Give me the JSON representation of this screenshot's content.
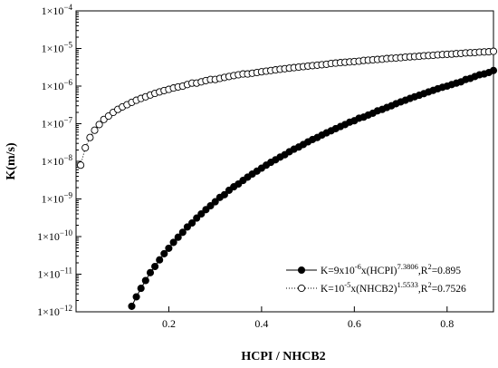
{
  "chart_data": {
    "type": "scatter",
    "xlabel": "HCPI / NHCB2",
    "ylabel": "K(m/s)",
    "xlim": [
      0.0,
      0.9
    ],
    "ylim": [
      1e-12,
      0.0001
    ],
    "y_scale": "log",
    "grid": false,
    "legend_position": "bottom-right",
    "x_ticks": [
      {
        "value": 0.2,
        "label": "0.2"
      },
      {
        "value": 0.4,
        "label": "0.4"
      },
      {
        "value": 0.6,
        "label": "0.6"
      },
      {
        "value": 0.8,
        "label": "0.8"
      }
    ],
    "y_ticks": [
      {
        "value": 1e-12,
        "base": "1×10",
        "exp": "−12"
      },
      {
        "value": 1e-11,
        "base": "1×10",
        "exp": "−11"
      },
      {
        "value": 1e-10,
        "base": "1×10",
        "exp": "−10"
      },
      {
        "value": 1e-09,
        "base": "1×10",
        "exp": "−9"
      },
      {
        "value": 1e-08,
        "base": "1×10",
        "exp": "−8"
      },
      {
        "value": 1e-07,
        "base": "1×10",
        "exp": "−7"
      },
      {
        "value": 1e-06,
        "base": "1×10",
        "exp": "−6"
      },
      {
        "value": 1e-05,
        "base": "1×10",
        "exp": "−5"
      },
      {
        "value": 0.0001,
        "base": "1×10",
        "exp": "−4"
      }
    ],
    "series": [
      {
        "legend_parts": [
          {
            "t": "K=9x10"
          },
          {
            "t": "-6",
            "sup": true
          },
          {
            "t": "x(HCPI)"
          },
          {
            "t": "7.3806",
            "sup": true
          },
          {
            "t": ",R"
          },
          {
            "t": "2",
            "sup": true
          },
          {
            "t": "=0.895"
          }
        ],
        "marker": "filled-circle",
        "color": "#000000",
        "line_style": "solid",
        "x": [
          0.12,
          0.13,
          0.14,
          0.15,
          0.16,
          0.17,
          0.18,
          0.19,
          0.2,
          0.21,
          0.22,
          0.23,
          0.24,
          0.25,
          0.26,
          0.27,
          0.28,
          0.29,
          0.3,
          0.31,
          0.32,
          0.33,
          0.34,
          0.35,
          0.36,
          0.37,
          0.38,
          0.39,
          0.4,
          0.41,
          0.42,
          0.43,
          0.44,
          0.45,
          0.46,
          0.47,
          0.48,
          0.49,
          0.5,
          0.51,
          0.52,
          0.53,
          0.54,
          0.55,
          0.56,
          0.57,
          0.58,
          0.59,
          0.6,
          0.61,
          0.62,
          0.63,
          0.64,
          0.65,
          0.66,
          0.67,
          0.68,
          0.69,
          0.7,
          0.71,
          0.72,
          0.73,
          0.74,
          0.75,
          0.76,
          0.77,
          0.78,
          0.79,
          0.8,
          0.81,
          0.82,
          0.83,
          0.84,
          0.85,
          0.86,
          0.87,
          0.88,
          0.89,
          0.9
        ],
        "y": [
          1.4e-12,
          2.5e-12,
          4.2e-12,
          6.8e-12,
          1.1e-11,
          1.6e-11,
          2.4e-11,
          3.5e-11,
          4.9e-11,
          7e-11,
          9.6e-11,
          1.3e-10,
          1.8e-10,
          2.3e-10,
          3.1e-10,
          4e-10,
          5.2e-10,
          6.6e-10,
          8.4e-10,
          1.1e-09,
          1.3e-09,
          1.7e-09,
          2.1e-09,
          2.5e-09,
          3.1e-09,
          3.8e-09,
          4.6e-09,
          5.5e-09,
          6.6e-09,
          7.9e-09,
          9.4e-09,
          1.1e-08,
          1.3e-08,
          1.5e-08,
          1.8e-08,
          2.1e-08,
          2.4e-08,
          2.8e-08,
          3.3e-08,
          3.8e-08,
          4.3e-08,
          5e-08,
          5.7e-08,
          6.5e-08,
          7.4e-08,
          8.4e-08,
          9.5e-08,
          1.1e-07,
          1.2e-07,
          1.4e-07,
          1.5e-07,
          1.7e-07,
          1.9e-07,
          2.2e-07,
          2.4e-07,
          2.7e-07,
          3e-07,
          3.4e-07,
          3.8e-07,
          4.2e-07,
          4.7e-07,
          5.2e-07,
          5.7e-07,
          6.3e-07,
          7e-07,
          7.7e-07,
          8.5e-07,
          9.3e-07,
          1e-06,
          1.1e-06,
          1.2e-06,
          1.3e-06,
          1.5e-06,
          1.6e-06,
          1.8e-06,
          2e-06,
          2.1e-06,
          2.3e-06,
          2.6e-06
        ]
      },
      {
        "legend_parts": [
          {
            "t": "K=10"
          },
          {
            "t": "-5",
            "sup": true
          },
          {
            "t": "x(NHCB2)"
          },
          {
            "t": "1.5533",
            "sup": true
          },
          {
            "t": ",R"
          },
          {
            "t": "2",
            "sup": true
          },
          {
            "t": "=0.7526"
          }
        ],
        "marker": "open-circle",
        "color": "#000000",
        "line_style": "dotted",
        "x": [
          0.01,
          0.02,
          0.03,
          0.04,
          0.05,
          0.06,
          0.07,
          0.08,
          0.09,
          0.1,
          0.11,
          0.12,
          0.13,
          0.14,
          0.15,
          0.16,
          0.17,
          0.18,
          0.19,
          0.2,
          0.21,
          0.22,
          0.23,
          0.24,
          0.25,
          0.26,
          0.27,
          0.28,
          0.29,
          0.3,
          0.31,
          0.32,
          0.33,
          0.34,
          0.35,
          0.36,
          0.37,
          0.38,
          0.39,
          0.4,
          0.41,
          0.42,
          0.43,
          0.44,
          0.45,
          0.46,
          0.47,
          0.48,
          0.49,
          0.5,
          0.51,
          0.52,
          0.53,
          0.54,
          0.55,
          0.56,
          0.57,
          0.58,
          0.59,
          0.6,
          0.61,
          0.62,
          0.63,
          0.64,
          0.65,
          0.66,
          0.67,
          0.68,
          0.69,
          0.7,
          0.71,
          0.72,
          0.73,
          0.74,
          0.75,
          0.76,
          0.77,
          0.78,
          0.79,
          0.8,
          0.81,
          0.82,
          0.83,
          0.84,
          0.85,
          0.86,
          0.87,
          0.88,
          0.89,
          0.9
        ],
        "y": [
          7.9e-09,
          2.3e-08,
          4.3e-08,
          6.7e-08,
          9.5e-08,
          1.3e-07,
          1.6e-07,
          2e-07,
          2.4e-07,
          2.8e-07,
          3.2e-07,
          3.7e-07,
          4.2e-07,
          4.7e-07,
          5.2e-07,
          5.8e-07,
          6.4e-07,
          7e-07,
          7.6e-07,
          8.2e-07,
          8.9e-07,
          9.5e-07,
          1e-06,
          1.1e-06,
          1.2e-06,
          1.2e-06,
          1.3e-06,
          1.4e-06,
          1.5e-06,
          1.5e-06,
          1.6e-06,
          1.7e-06,
          1.8e-06,
          1.9e-06,
          2e-06,
          2.1e-06,
          2.1e-06,
          2.2e-06,
          2.3e-06,
          2.4e-06,
          2.5e-06,
          2.6e-06,
          2.7e-06,
          2.8e-06,
          2.9e-06,
          3e-06,
          3.1e-06,
          3.2e-06,
          3.3e-06,
          3.4e-06,
          3.5e-06,
          3.6e-06,
          3.7e-06,
          3.8e-06,
          4e-06,
          4.1e-06,
          4.2e-06,
          4.3e-06,
          4.4e-06,
          4.5e-06,
          4.6e-06,
          4.8e-06,
          4.9e-06,
          5e-06,
          5.1e-06,
          5.2e-06,
          5.4e-06,
          5.5e-06,
          5.6e-06,
          5.7e-06,
          5.9e-06,
          6e-06,
          6.1e-06,
          6.2e-06,
          6.4e-06,
          6.5e-06,
          6.6e-06,
          6.8e-06,
          6.9e-06,
          7e-06,
          7.1e-06,
          7.3e-06,
          7.4e-06,
          7.6e-06,
          7.7e-06,
          7.8e-06,
          8e-06,
          8.1e-06,
          8.2e-06,
          8.4e-06
        ]
      }
    ]
  }
}
